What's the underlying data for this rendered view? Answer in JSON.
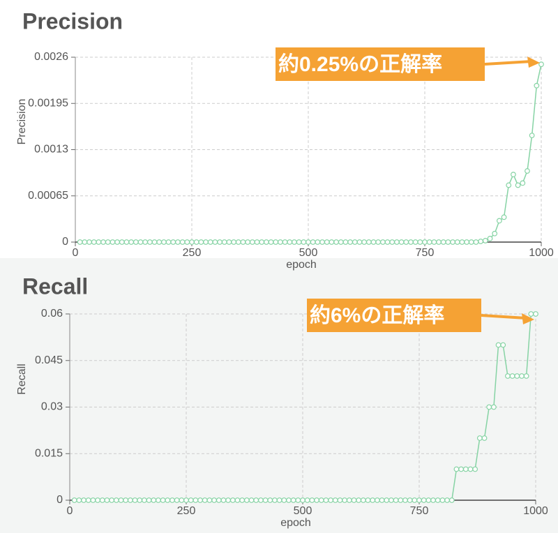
{
  "chart_data": [
    {
      "type": "line",
      "title": "Precision",
      "xlabel": "epoch",
      "ylabel": "Precision",
      "annotation": "約0.25%の正解率",
      "xlim": [
        0,
        1000
      ],
      "xticks": [
        0,
        250,
        500,
        750,
        1000
      ],
      "ylim": [
        0,
        0.0026
      ],
      "yticks": [
        0,
        0.00065,
        0.0013,
        0.00195,
        0.0026
      ],
      "grid": true,
      "x": [
        10,
        20,
        30,
        40,
        50,
        60,
        70,
        80,
        90,
        100,
        110,
        120,
        130,
        140,
        150,
        160,
        170,
        180,
        190,
        200,
        210,
        220,
        230,
        240,
        250,
        260,
        270,
        280,
        290,
        300,
        310,
        320,
        330,
        340,
        350,
        360,
        370,
        380,
        390,
        400,
        410,
        420,
        430,
        440,
        450,
        460,
        470,
        480,
        490,
        500,
        510,
        520,
        530,
        540,
        550,
        560,
        570,
        580,
        590,
        600,
        610,
        620,
        630,
        640,
        650,
        660,
        670,
        680,
        690,
        700,
        710,
        720,
        730,
        740,
        750,
        760,
        770,
        780,
        790,
        800,
        810,
        820,
        830,
        840,
        850,
        860,
        870,
        880,
        890,
        900,
        910,
        920,
        930,
        940,
        950,
        960,
        970,
        980,
        990,
        1000
      ],
      "series": [
        {
          "color": "#86d3a4",
          "values": [
            0,
            0,
            0,
            0,
            0,
            0,
            0,
            0,
            0,
            0,
            0,
            0,
            0,
            0,
            0,
            0,
            0,
            0,
            0,
            0,
            0,
            0,
            0,
            0,
            0,
            0,
            0,
            0,
            0,
            0,
            0,
            0,
            0,
            0,
            0,
            0,
            0,
            0,
            0,
            0,
            0,
            0,
            0,
            0,
            0,
            0,
            0,
            0,
            0,
            0,
            0,
            0,
            0,
            0,
            0,
            0,
            0,
            0,
            0,
            0,
            0,
            0,
            0,
            0,
            0,
            0,
            0,
            0,
            0,
            0,
            0,
            0,
            0,
            0,
            0,
            0,
            0,
            0,
            0,
            0,
            0,
            0,
            0,
            0,
            0,
            0,
            1e-05,
            2e-05,
            5e-05,
            0.00012,
            0.0003,
            0.00035,
            0.0008,
            0.00095,
            0.0008,
            0.00083,
            0.001,
            0.0015,
            0.0022,
            0.0025
          ]
        }
      ]
    },
    {
      "type": "line",
      "title": "Recall",
      "xlabel": "epoch",
      "ylabel": "Recall",
      "annotation": "約6%の正解率",
      "xlim": [
        0,
        1000
      ],
      "xticks": [
        0,
        250,
        500,
        750,
        1000
      ],
      "ylim": [
        0,
        0.06
      ],
      "yticks": [
        0,
        0.015,
        0.03,
        0.045,
        0.06
      ],
      "grid": true,
      "x": [
        10,
        20,
        30,
        40,
        50,
        60,
        70,
        80,
        90,
        100,
        110,
        120,
        130,
        140,
        150,
        160,
        170,
        180,
        190,
        200,
        210,
        220,
        230,
        240,
        250,
        260,
        270,
        280,
        290,
        300,
        310,
        320,
        330,
        340,
        350,
        360,
        370,
        380,
        390,
        400,
        410,
        420,
        430,
        440,
        450,
        460,
        470,
        480,
        490,
        500,
        510,
        520,
        530,
        540,
        550,
        560,
        570,
        580,
        590,
        600,
        610,
        620,
        630,
        640,
        650,
        660,
        670,
        680,
        690,
        700,
        710,
        720,
        730,
        740,
        750,
        760,
        770,
        780,
        790,
        800,
        810,
        820,
        830,
        840,
        850,
        860,
        870,
        880,
        890,
        900,
        910,
        920,
        930,
        940,
        950,
        960,
        970,
        980,
        990,
        1000
      ],
      "series": [
        {
          "color": "#86d3a4",
          "values": [
            0,
            0,
            0,
            0,
            0,
            0,
            0,
            0,
            0,
            0,
            0,
            0,
            0,
            0,
            0,
            0,
            0,
            0,
            0,
            0,
            0,
            0,
            0,
            0,
            0,
            0,
            0,
            0,
            0,
            0,
            0,
            0,
            0,
            0,
            0,
            0,
            0,
            0,
            0,
            0,
            0,
            0,
            0,
            0,
            0,
            0,
            0,
            0,
            0,
            0,
            0,
            0,
            0,
            0,
            0,
            0,
            0,
            0,
            0,
            0,
            0,
            0,
            0,
            0,
            0,
            0,
            0,
            0,
            0,
            0,
            0,
            0,
            0,
            0,
            0,
            0,
            0,
            0,
            0,
            0,
            0,
            0,
            0.01,
            0.01,
            0.01,
            0.01,
            0.01,
            0.02,
            0.02,
            0.03,
            0.03,
            0.05,
            0.05,
            0.04,
            0.04,
            0.04,
            0.04,
            0.04,
            0.06,
            0.06
          ]
        }
      ]
    }
  ]
}
